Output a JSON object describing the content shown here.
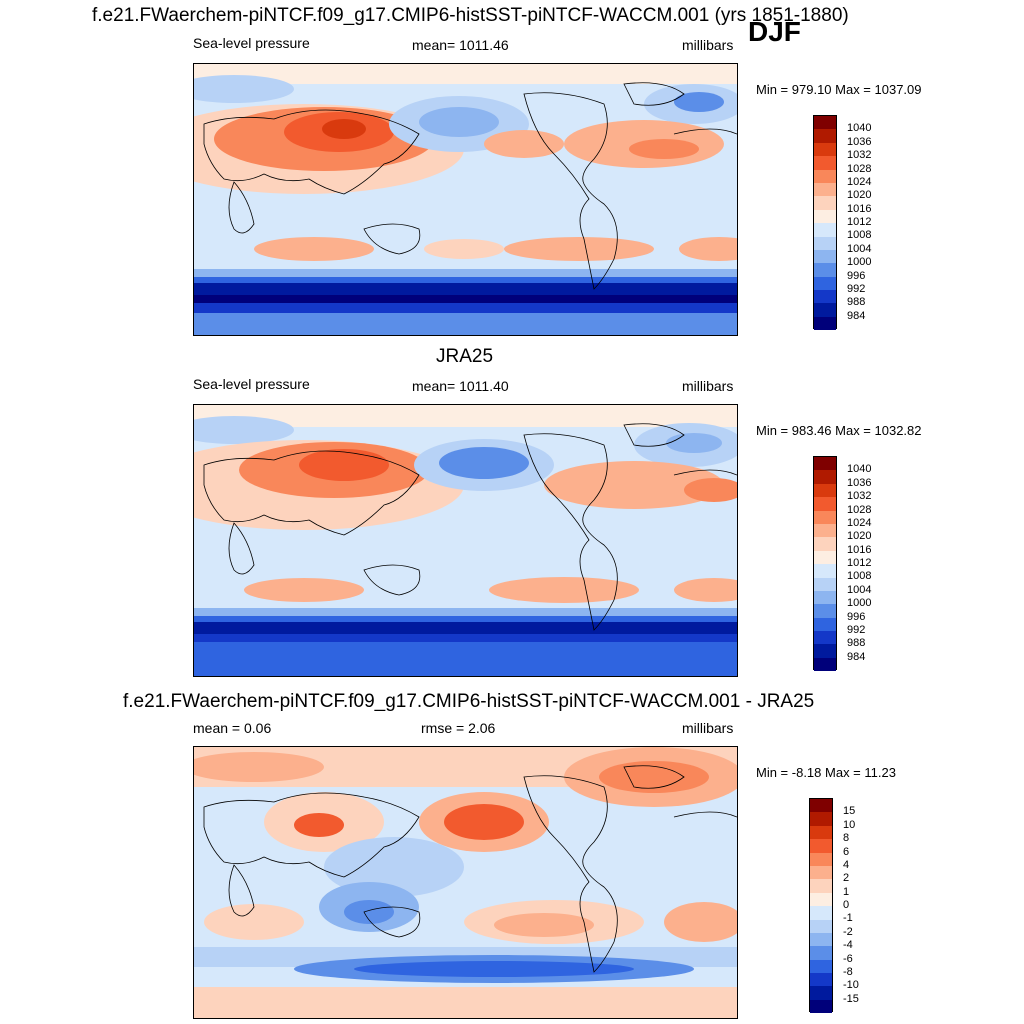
{
  "header": {
    "title": "f.e21.FWaerchem-piNTCF.f09_g17.CMIP6-histSST-piNTCF-WACCM.001 (yrs 1851-1880)",
    "season": "DJF"
  },
  "panels": [
    {
      "title": "",
      "left_label": "Sea-level pressure",
      "center_label": "mean= 1011.46",
      "right_label": "millibars",
      "minmax": "Min = 979.10 Max = 1037.09",
      "colorbar_labels": [
        "1040",
        "1036",
        "1032",
        "1028",
        "1024",
        "1020",
        "1016",
        "1012",
        "1008",
        "1004",
        "1000",
        "996",
        "992",
        "988",
        "984"
      ]
    },
    {
      "title": "JRA25",
      "left_label": "Sea-level pressure",
      "center_label": "mean= 1011.40",
      "right_label": "millibars",
      "minmax": "Min = 983.46 Max = 1032.82",
      "colorbar_labels": [
        "1040",
        "1036",
        "1032",
        "1028",
        "1024",
        "1020",
        "1016",
        "1012",
        "1008",
        "1004",
        "1000",
        "996",
        "992",
        "988",
        "984"
      ]
    },
    {
      "title": "f.e21.FWaerchem-piNTCF.f09_g17.CMIP6-histSST-piNTCF-WACCM.001 - JRA25",
      "left_label": "mean =   0.06",
      "center_label": "rmse =   2.06",
      "right_label": "millibars",
      "minmax": "Min =  -8.18 Max =  11.23",
      "colorbar_labels": [
        "15",
        "10",
        "8",
        "6",
        "4",
        "2",
        "1",
        "0",
        "-1",
        "-2",
        "-4",
        "-6",
        "-8",
        "-10",
        "-15"
      ]
    }
  ],
  "colors": {
    "abs_scale": [
      "#7f0000",
      "#b01a00",
      "#d93a0e",
      "#f25a2e",
      "#f9875a",
      "#fcb08d",
      "#fdd3bd",
      "#fdeee2",
      "#d6e8fb",
      "#b7d2f6",
      "#8db5f0",
      "#5b8ee8",
      "#2f64e0",
      "#1438c8",
      "#001a9e",
      "#00007a"
    ],
    "diff_scale": [
      "#7f0000",
      "#b01a00",
      "#d93a0e",
      "#f25a2e",
      "#f9875a",
      "#fcb08d",
      "#fdd3bd",
      "#fdeee2",
      "#d6e8fb",
      "#b7d2f6",
      "#8db5f0",
      "#5b8ee8",
      "#2f64e0",
      "#1438c8",
      "#001a9e",
      "#00007a"
    ]
  }
}
